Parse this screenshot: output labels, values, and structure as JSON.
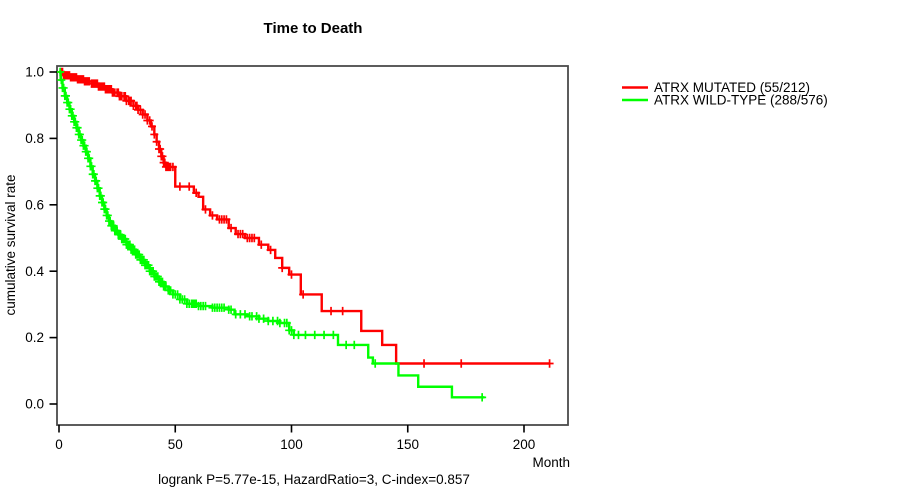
{
  "title": "Time to Death",
  "footer": "logrank P=5.77e-15, HazardRatio=3, C-index=0.857",
  "axes": {
    "x_label": "Month",
    "y_label": "cumulative survival rate",
    "x_ticks": [
      "0",
      "50",
      "100",
      "150",
      "200"
    ],
    "y_ticks": [
      "0.0",
      "0.2",
      "0.4",
      "0.6",
      "0.8",
      "1.0"
    ]
  },
  "legend": [
    {
      "label": "ATRX MUTATED (55/212)",
      "color": "#ff0000"
    },
    {
      "label": "ATRX WILD-TYPE (288/576)",
      "color": "#00ff00"
    }
  ],
  "chart_data": {
    "type": "line",
    "subtype": "kaplan-meier-step",
    "title": "Time to Death",
    "xlabel": "Month",
    "ylabel": "cumulative survival rate",
    "annotation": "logrank P=5.77e-15, HazardRatio=3, C-index=0.857",
    "xlim": [
      0,
      220
    ],
    "ylim": [
      0,
      1.0
    ],
    "x_tick_values": [
      0,
      50,
      100,
      150,
      200
    ],
    "y_tick_values": [
      0,
      0.2,
      0.4,
      0.6,
      0.8,
      1.0
    ],
    "grid": false,
    "legend_position": "right-outside",
    "series": [
      {
        "name": "ATRX MUTATED (55/212)",
        "color": "#ff0000",
        "events": "55/212",
        "steps": [
          [
            0,
            1.0
          ],
          [
            2,
            0.99
          ],
          [
            5,
            0.984
          ],
          [
            8,
            0.978
          ],
          [
            11,
            0.972
          ],
          [
            14,
            0.965
          ],
          [
            17,
            0.956
          ],
          [
            20,
            0.948
          ],
          [
            23,
            0.938
          ],
          [
            26,
            0.927
          ],
          [
            29,
            0.913
          ],
          [
            32,
            0.898
          ],
          [
            34,
            0.886
          ],
          [
            36,
            0.872
          ],
          [
            38,
            0.854
          ],
          [
            39.5,
            0.836
          ],
          [
            41,
            0.812
          ],
          [
            42,
            0.79
          ],
          [
            43,
            0.768
          ],
          [
            44,
            0.746
          ],
          [
            45,
            0.727
          ],
          [
            46,
            0.714
          ],
          [
            50,
            0.655
          ],
          [
            58,
            0.636
          ],
          [
            60,
            0.624
          ],
          [
            62,
            0.586
          ],
          [
            65,
            0.568
          ],
          [
            68,
            0.556
          ],
          [
            73,
            0.53
          ],
          [
            76,
            0.512
          ],
          [
            80,
            0.5
          ],
          [
            86,
            0.48
          ],
          [
            90,
            0.464
          ],
          [
            93,
            0.44
          ],
          [
            96,
            0.41
          ],
          [
            99,
            0.39
          ],
          [
            104,
            0.33
          ],
          [
            113,
            0.28
          ],
          [
            130,
            0.22
          ],
          [
            139,
            0.178
          ],
          [
            145,
            0.122
          ],
          [
            211,
            0.122
          ]
        ],
        "censor_months": [
          1,
          1.5,
          2,
          2.5,
          3,
          3.5,
          4,
          4.5,
          5,
          5.5,
          6,
          6.5,
          7,
          7.5,
          8,
          8.5,
          9,
          9.5,
          10,
          10.5,
          11,
          11.5,
          12,
          12.5,
          13,
          14,
          14.5,
          15,
          15.5,
          16,
          16.5,
          17,
          17.5,
          18,
          18.5,
          19,
          19.5,
          20,
          20.5,
          21,
          21.5,
          22,
          22.5,
          23,
          23.5,
          24,
          25,
          25.5,
          26,
          26.5,
          27,
          28,
          28.5,
          29,
          30,
          30.5,
          31,
          32,
          33,
          33.5,
          34,
          35,
          36,
          37,
          38,
          39,
          40,
          41,
          42,
          43,
          43.5,
          44,
          44.5,
          45,
          45.5,
          46,
          46.5,
          47,
          47.5,
          48,
          49,
          52,
          56,
          59,
          63,
          66,
          69,
          70,
          71,
          72,
          74,
          77,
          78,
          79,
          81,
          82,
          83,
          84,
          87,
          91,
          96,
          100,
          105,
          117,
          122,
          157,
          173,
          211
        ]
      },
      {
        "name": "ATRX WILD-TYPE (288/576)",
        "color": "#00ff00",
        "events": "288/576",
        "steps": [
          [
            0,
            1.0
          ],
          [
            0.7,
            0.976
          ],
          [
            1.5,
            0.952
          ],
          [
            2.5,
            0.928
          ],
          [
            3.5,
            0.908
          ],
          [
            4.5,
            0.888
          ],
          [
            5.5,
            0.868
          ],
          [
            6.5,
            0.85
          ],
          [
            7.5,
            0.832
          ],
          [
            8.5,
            0.812
          ],
          [
            9.5,
            0.795
          ],
          [
            10.5,
            0.778
          ],
          [
            11.5,
            0.76
          ],
          [
            12.5,
            0.74
          ],
          [
            13.5,
            0.716
          ],
          [
            14.5,
            0.692
          ],
          [
            15.5,
            0.672
          ],
          [
            16.5,
            0.65
          ],
          [
            17.5,
            0.627
          ],
          [
            18.5,
            0.607
          ],
          [
            19.5,
            0.587
          ],
          [
            20.5,
            0.568
          ],
          [
            21.5,
            0.551
          ],
          [
            22.5,
            0.537
          ],
          [
            24,
            0.522
          ],
          [
            25.5,
            0.51
          ],
          [
            27,
            0.497
          ],
          [
            29,
            0.48
          ],
          [
            31,
            0.465
          ],
          [
            33,
            0.45
          ],
          [
            35,
            0.434
          ],
          [
            37,
            0.418
          ],
          [
            39,
            0.4
          ],
          [
            41,
            0.384
          ],
          [
            43,
            0.368
          ],
          [
            45,
            0.354
          ],
          [
            47,
            0.342
          ],
          [
            49,
            0.33
          ],
          [
            52,
            0.315
          ],
          [
            55,
            0.302
          ],
          [
            60,
            0.295
          ],
          [
            66,
            0.29
          ],
          [
            73,
            0.284
          ],
          [
            75.5,
            0.27
          ],
          [
            81,
            0.264
          ],
          [
            86,
            0.257
          ],
          [
            90,
            0.25
          ],
          [
            95,
            0.244
          ],
          [
            99,
            0.222
          ],
          [
            101,
            0.208
          ],
          [
            120,
            0.178
          ],
          [
            133,
            0.14
          ],
          [
            135,
            0.122
          ],
          [
            146,
            0.086
          ],
          [
            154.5,
            0.052
          ],
          [
            169,
            0.02
          ],
          [
            183,
            0.02
          ]
        ],
        "censor_months": [
          0.5,
          1,
          1.5,
          2,
          2.5,
          3,
          3.5,
          4,
          4.5,
          5,
          5.5,
          6,
          6.5,
          7,
          7.5,
          8,
          8.5,
          9,
          9.5,
          10,
          10.5,
          11,
          11.5,
          12,
          12.5,
          13,
          13.5,
          14,
          14.5,
          15,
          15.5,
          16,
          16.5,
          17,
          17.5,
          18,
          18.5,
          19,
          19.5,
          20,
          20.5,
          21,
          21.5,
          22,
          22.5,
          23,
          23.5,
          24,
          24.5,
          25,
          25.5,
          26,
          26.5,
          27,
          27.5,
          28,
          28.5,
          29,
          29.5,
          30,
          30.5,
          31,
          31.5,
          32,
          32.5,
          33,
          33.5,
          34,
          34.5,
          35,
          35.5,
          36,
          36.5,
          37,
          37.5,
          38,
          38.5,
          39,
          39.5,
          40,
          40.5,
          41,
          41.5,
          42,
          42.5,
          43,
          43.5,
          44,
          44.5,
          45,
          45.5,
          46,
          47,
          47.5,
          48,
          49,
          50,
          51,
          52,
          53,
          54,
          55,
          56,
          57,
          57.5,
          58,
          58.5,
          59,
          60,
          61,
          62,
          63,
          66,
          67,
          68,
          69,
          70,
          71,
          73,
          74,
          76,
          78,
          80,
          82,
          83,
          85,
          86,
          88,
          90,
          92,
          94,
          95,
          97,
          98,
          99,
          100,
          101,
          103,
          106,
          110,
          114,
          118,
          123.5,
          127,
          136,
          182
        ]
      }
    ]
  }
}
